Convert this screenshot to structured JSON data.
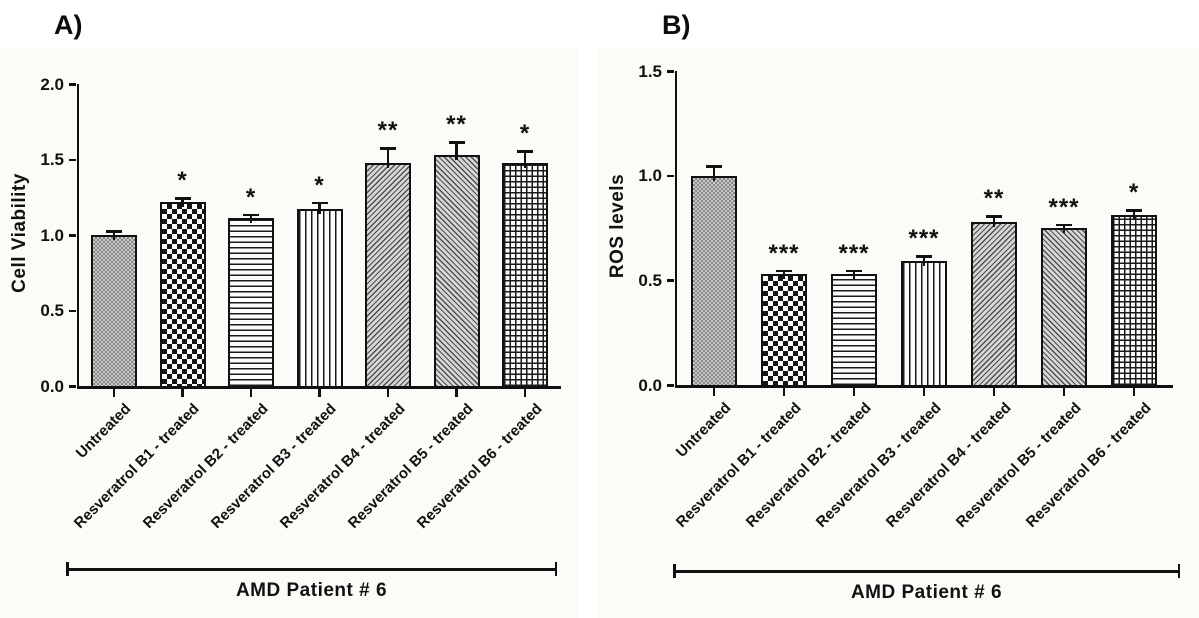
{
  "figure": {
    "panel_a_letter": "A)",
    "panel_b_letter": "B)"
  },
  "chart_data": [
    {
      "type": "bar",
      "panel_label": "A)",
      "title": "",
      "xlabel": "",
      "ylabel": "Cell Viability",
      "ylim": [
        0.0,
        2.0
      ],
      "yticks": [
        "0.0",
        "0.5",
        "1.0",
        "1.5",
        "2.0"
      ],
      "grid": false,
      "legend": "none",
      "categories": [
        "Untreated",
        "Resveratrol B1 - treated",
        "Resveratrol B2 - treated",
        "Resveratrol B3 - treated",
        "Resveratrol B4 - treated",
        "Resveratrol B5 - treated",
        "Resveratrol B6 - treated"
      ],
      "values": [
        1.0,
        1.22,
        1.11,
        1.17,
        1.48,
        1.53,
        1.48
      ],
      "errors": [
        0.03,
        0.03,
        0.03,
        0.05,
        0.1,
        0.09,
        0.08
      ],
      "significance": [
        "",
        "*",
        "*",
        "*",
        "**",
        "**",
        "*"
      ],
      "patterns": [
        "fine-checker",
        "checkerboard",
        "hlines",
        "vlines",
        "diag-right",
        "diag-left",
        "grid"
      ],
      "group_label": "AMD Patient # 6"
    },
    {
      "type": "bar",
      "panel_label": "B)",
      "title": "",
      "xlabel": "",
      "ylabel": "ROS levels",
      "ylim": [
        0.0,
        1.5
      ],
      "yticks": [
        "0.0",
        "0.5",
        "1.0",
        "1.5"
      ],
      "grid": false,
      "legend": "none",
      "categories": [
        "Untreated",
        "Resveratrol B1 - treated",
        "Resveratrol B2 - treated",
        "Resveratrol B3 - treated",
        "Resveratrol B4 - treated",
        "Resveratrol B5 - treated",
        "Resveratrol B6 - treated"
      ],
      "values": [
        1.0,
        0.53,
        0.53,
        0.59,
        0.78,
        0.75,
        0.81
      ],
      "errors": [
        0.05,
        0.02,
        0.02,
        0.03,
        0.03,
        0.02,
        0.03
      ],
      "significance": [
        "",
        "***",
        "***",
        "***",
        "**",
        "***",
        "*"
      ],
      "patterns": [
        "fine-checker",
        "checkerboard",
        "hlines",
        "vlines",
        "diag-right",
        "diag-left",
        "grid"
      ],
      "group_label": "AMD Patient # 6"
    }
  ]
}
